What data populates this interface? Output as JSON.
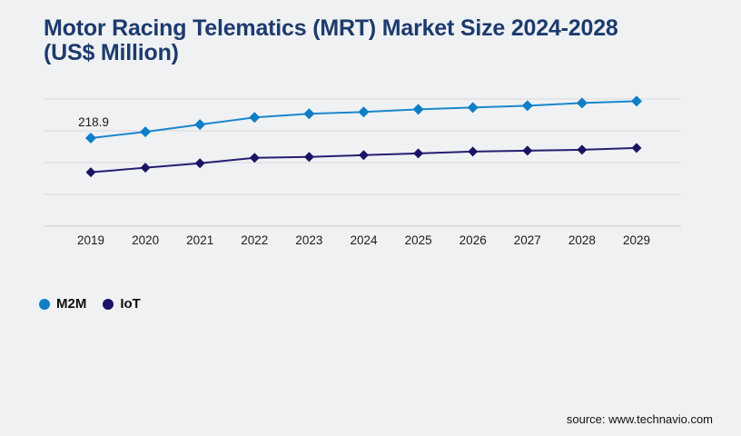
{
  "header": {
    "title_line1": "Motor Racing Telematics (MRT) Market Size 2024-2028",
    "title_line2": "(US$ Million)"
  },
  "chart_data": {
    "type": "line",
    "title": "Motor Racing Telematics (MRT) Market Size 2024-2028 (US$ Million)",
    "categories": [
      "2019",
      "2020",
      "2021",
      "2022",
      "2023",
      "2024",
      "2025",
      "2026",
      "2027",
      "2028",
      "2029"
    ],
    "series": [
      {
        "name": "M2M",
        "marker_color": "#0e7ec6",
        "line_color": "#1a87cd",
        "values": [
          218.9,
          234.5,
          252.4,
          270.3,
          279.2,
          283.7,
          290.4,
          294.8,
          299.3,
          306.0,
          310.5
        ]
      },
      {
        "name": "IoT",
        "marker_color": "#1b1464",
        "line_color": "#251e70",
        "values": [
          134.0,
          145.2,
          156.4,
          169.8,
          172.0,
          176.5,
          180.9,
          185.4,
          187.6,
          189.9,
          194.3
        ]
      }
    ],
    "point_label": {
      "series": "M2M",
      "category": "2019",
      "text": "218.9"
    },
    "ylim": [
      0,
      316
    ],
    "grid": "horizontal-only",
    "y_axis_labels": "none",
    "legend_position": "bottom-left",
    "marker": "diamond"
  },
  "legend": {
    "items": [
      {
        "label": "M2M",
        "color": "#0e7ec6"
      },
      {
        "label": "IoT",
        "color": "#1b1464"
      }
    ]
  },
  "source": {
    "text": "source: www.technavio.com"
  },
  "colors": {
    "background": "#f0f1f3",
    "title": "#1c3b6e",
    "gridline": "#d7d9dc",
    "axis_line": "#c8cacd",
    "axis_label": "#1c1c1c"
  }
}
